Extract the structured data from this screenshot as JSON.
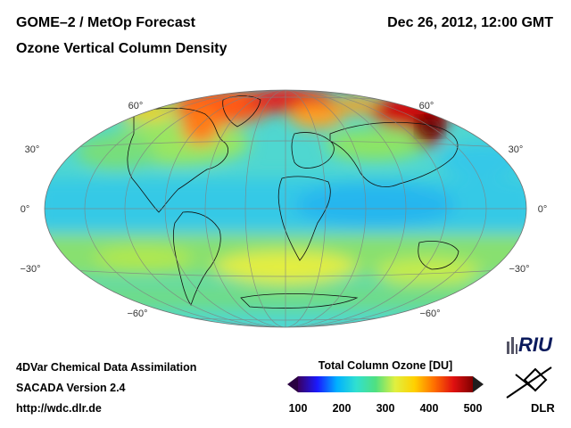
{
  "header": {
    "title_left": "GOME–2 / MetOp Forecast",
    "title_right": "Dec 26, 2012, 12:00 GMT",
    "subtitle": "Ozone Vertical Column Density"
  },
  "map": {
    "projection": "Hammer-Aitoff",
    "grid": true,
    "lat_labels_left": [
      "60°",
      "30°",
      "0°",
      "−30°",
      "−60°"
    ],
    "lat_labels_right": [
      "60°",
      "30°",
      "0°",
      "−30°",
      "−60°"
    ]
  },
  "footer": {
    "line1": "4DVar Chemical Data Assimilation",
    "line2": "SACADA Version 2.4",
    "line3": "http://wdc.dlr.de"
  },
  "colorbar": {
    "title": "Total Column Ozone [DU]",
    "ticks": [
      "100",
      "200",
      "300",
      "400",
      "500"
    ],
    "min": 100,
    "max": 500,
    "colors": [
      "#3a0060",
      "#1a1aff",
      "#00b0ff",
      "#30e0d0",
      "#50e080",
      "#e0f040",
      "#ffd000",
      "#ff7000",
      "#e01010",
      "#800000"
    ]
  },
  "logos": {
    "riu": "RIU",
    "dlr": "DLR"
  }
}
